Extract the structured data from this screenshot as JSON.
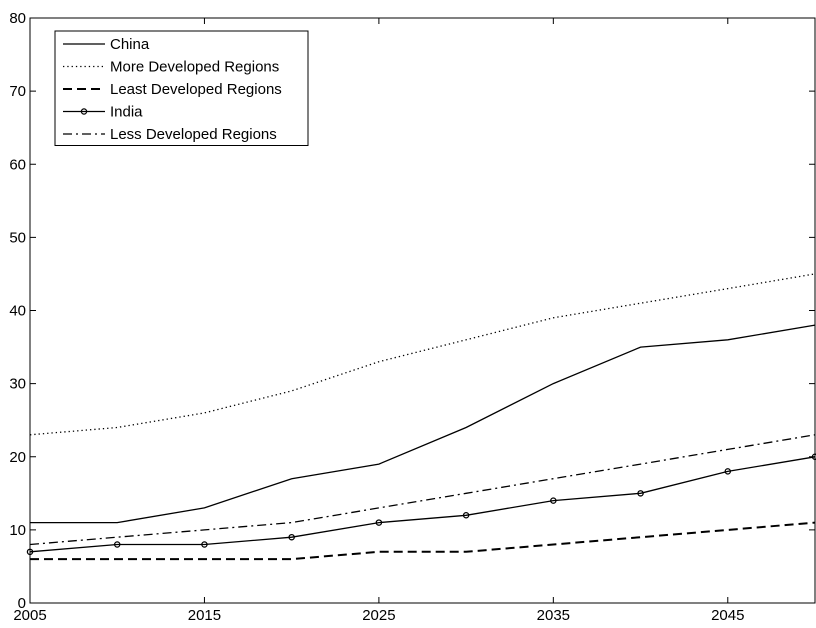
{
  "chart_data": {
    "type": "line",
    "title": "",
    "xlabel": "",
    "ylabel": "",
    "xlim": [
      2005,
      2050
    ],
    "ylim": [
      0,
      80
    ],
    "x_ticks": [
      2005,
      2015,
      2025,
      2035,
      2045
    ],
    "y_ticks": [
      0,
      10,
      20,
      30,
      40,
      50,
      60,
      70,
      80
    ],
    "x_tick_labels": [
      "2005",
      "2015",
      "2025",
      "2035",
      "2045"
    ],
    "y_tick_labels": [
      "0",
      "10",
      "20",
      "30",
      "40",
      "50",
      "60",
      "70",
      "80"
    ],
    "grid": false,
    "legend_position": "top-left",
    "x": [
      2005,
      2010,
      2015,
      2020,
      2025,
      2030,
      2035,
      2040,
      2045,
      2050
    ],
    "series": [
      {
        "name": "China",
        "style": "solid",
        "markers": false,
        "values": [
          11,
          11,
          13,
          17,
          19,
          24,
          30,
          35,
          36,
          38
        ]
      },
      {
        "name": "More Developed Regions",
        "style": "dotted",
        "markers": false,
        "values": [
          23,
          24,
          26,
          29,
          33,
          36,
          39,
          41,
          43,
          45
        ]
      },
      {
        "name": "Least Developed Regions",
        "style": "dashed",
        "markers": false,
        "values": [
          6,
          6,
          6,
          6,
          7,
          7,
          8,
          9,
          10,
          11
        ]
      },
      {
        "name": "India",
        "style": "solid",
        "markers": true,
        "values": [
          7,
          8,
          8,
          9,
          11,
          12,
          14,
          15,
          18,
          20
        ]
      },
      {
        "name": "Less Developed Regions",
        "style": "dashdot",
        "markers": false,
        "values": [
          8,
          9,
          10,
          11,
          13,
          15,
          17,
          19,
          21,
          23
        ]
      }
    ],
    "line_color": "#000000"
  }
}
